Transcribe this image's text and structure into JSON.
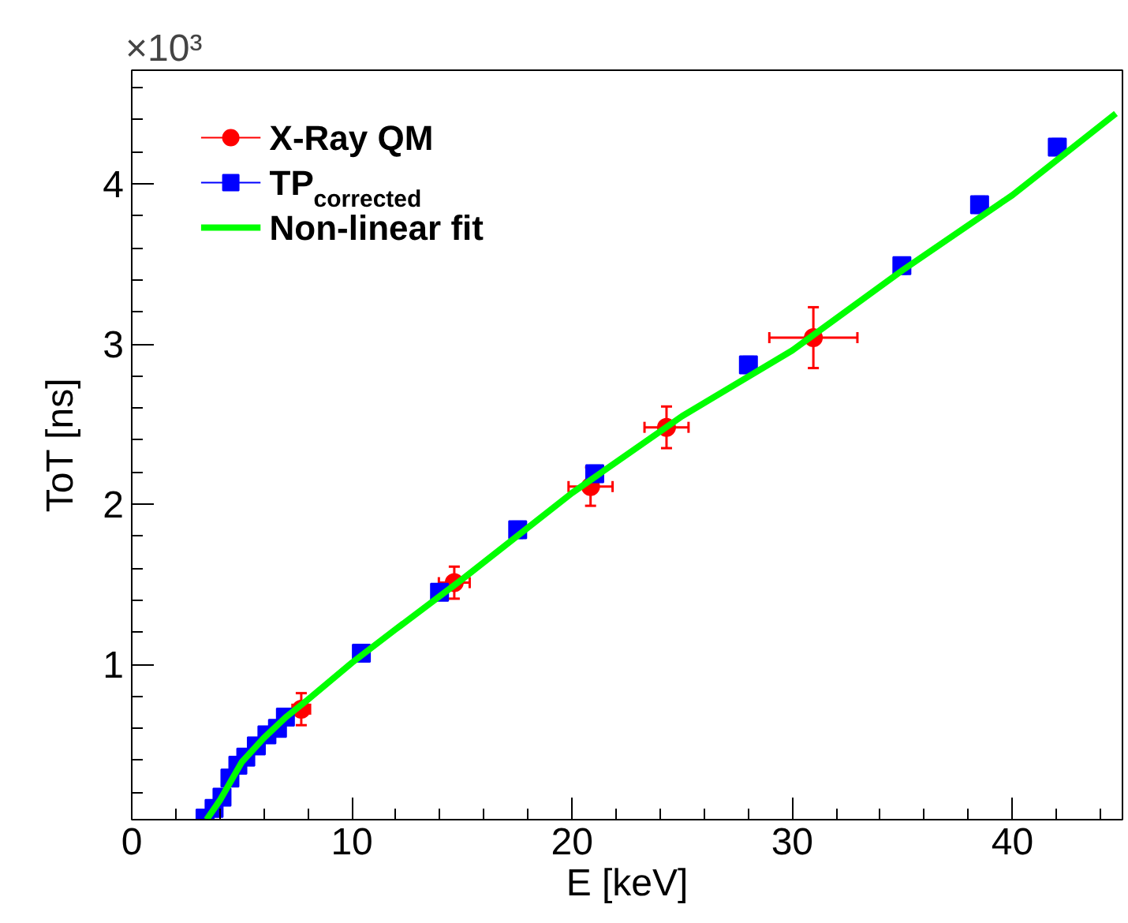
{
  "chart_data": {
    "type": "scatter",
    "xlabel": "E [keV]",
    "ylabel": "ToT [ns]",
    "annotations": [
      "×10³"
    ],
    "xlim": [
      0,
      45
    ],
    "xticks": [
      0,
      10,
      20,
      30,
      40
    ],
    "ylim": [
      0.03,
      4.71
    ],
    "yticks": [
      1,
      2,
      3,
      4
    ],
    "grid": false,
    "legend": "top left",
    "series": [
      {
        "name": "X-Ray QM",
        "marker": "circle",
        "color": "#ff0000",
        "x": [
          7.7,
          14.65,
          20.84,
          24.29,
          30.96
        ],
        "values": [
          0.72,
          1.51,
          2.11,
          2.48,
          3.04
        ],
        "errors": [
          0.1,
          0.1,
          0.12,
          0.13,
          0.19
        ],
        "xerrors": [
          0.4,
          0.7,
          1.0,
          1.0,
          2.0
        ]
      },
      {
        "name": "TP$_{corrected}$",
        "marker": "square",
        "color": "#0000ff",
        "x": [
          3.33,
          3.74,
          4.1,
          4.46,
          4.82,
          5.18,
          5.66,
          6.14,
          6.62,
          6.98,
          10.43,
          13.98,
          17.53,
          21.03,
          28.01,
          34.98,
          38.51,
          42.04
        ],
        "values": [
          0.04,
          0.1,
          0.17,
          0.29,
          0.37,
          0.42,
          0.49,
          0.56,
          0.6,
          0.67,
          1.07,
          1.45,
          1.84,
          2.19,
          2.87,
          3.49,
          3.87,
          4.23
        ],
        "errors": [
          0.03,
          0.03,
          0.03,
          0.03,
          0.03,
          0.03,
          0.03,
          0.03,
          0.03,
          0.03,
          0.03,
          0.04,
          0.05,
          0.05,
          0.05,
          0.05,
          0.05,
          0.05
        ]
      },
      {
        "name": "Non-linear fit",
        "type": "line",
        "color": "#00ff00",
        "x": [
          3.4,
          4,
          5,
          6,
          7,
          8,
          10,
          12,
          15,
          20,
          25,
          30,
          35,
          40,
          44.7
        ],
        "values": [
          0.03,
          0.15,
          0.39,
          0.54,
          0.67,
          0.78,
          1.01,
          1.22,
          1.53,
          2.07,
          2.55,
          2.96,
          3.46,
          3.93,
          4.44
        ]
      }
    ]
  }
}
